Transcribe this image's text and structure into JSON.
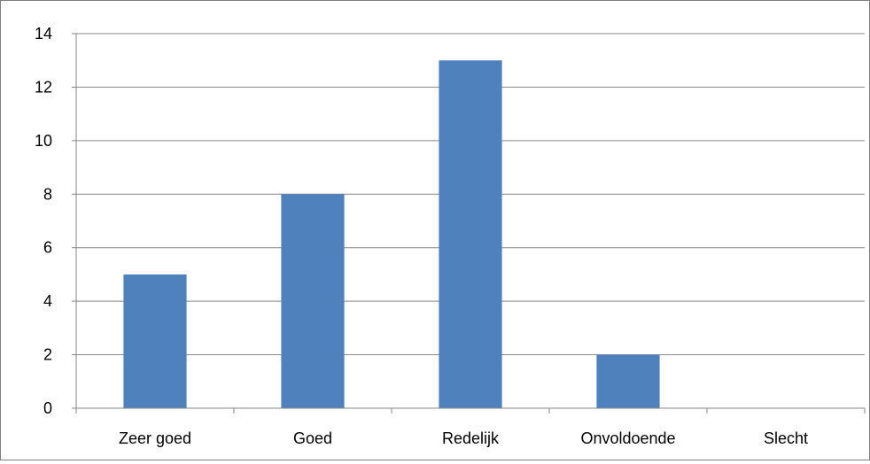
{
  "chart_data": {
    "type": "bar",
    "title": "",
    "xlabel": "",
    "ylabel": "",
    "categories": [
      "Zeer goed",
      "Goed",
      "Redelijk",
      "Onvoldoende",
      "Slecht"
    ],
    "values": [
      5,
      8,
      13,
      2,
      0
    ],
    "ylim": [
      0,
      14
    ],
    "yticks": [
      0,
      2,
      4,
      6,
      8,
      10,
      12,
      14
    ],
    "grid": true,
    "legend": "none",
    "bar_color": "#4F81BD",
    "grid_color": "#868686",
    "axis_color": "#868686"
  }
}
